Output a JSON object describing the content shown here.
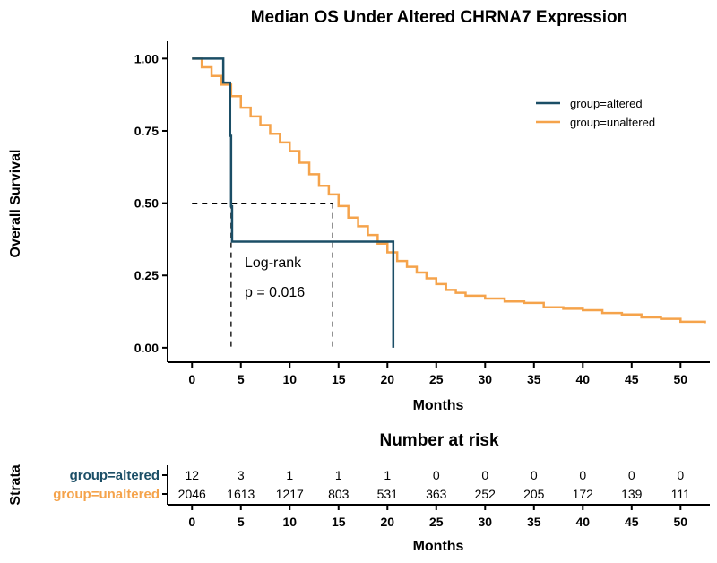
{
  "chart_data": [
    {
      "type": "line",
      "subtype": "kaplan-meier",
      "title": "Median OS Under Altered CHRNA7 Expression",
      "xlabel": "Months",
      "ylabel": "Overall Survival",
      "xlim": [
        -2.5,
        53
      ],
      "ylim": [
        -0.05,
        1.06
      ],
      "x_ticks": [
        0,
        5,
        10,
        15,
        20,
        25,
        30,
        35,
        40,
        45,
        50
      ],
      "y_ticks": [
        0.0,
        0.25,
        0.5,
        0.75,
        1.0
      ],
      "y_tick_labels": [
        "0.00",
        "0.25",
        "0.50",
        "0.75",
        "1.00"
      ],
      "legend": {
        "position": "top-right"
      },
      "series": [
        {
          "name": "group=altered",
          "color": "#1b4e66",
          "step": true,
          "x": [
            0,
            3.2,
            3.2,
            3.9,
            3.9,
            4.0,
            4.0,
            4.1,
            4.1,
            20.6,
            20.6
          ],
          "y": [
            1.0,
            1.0,
            0.917,
            0.917,
            0.733,
            0.733,
            0.489,
            0.489,
            0.367,
            0.367,
            0.0
          ]
        },
        {
          "name": "group=unaltered",
          "color": "#f5a34b",
          "step": true,
          "x": [
            0,
            1,
            2,
            3,
            4,
            5,
            6,
            7,
            8,
            9,
            10,
            11,
            12,
            13,
            14,
            15,
            16,
            17,
            18,
            19,
            20,
            21,
            22,
            23,
            24,
            25,
            26,
            27,
            28,
            30,
            32,
            34,
            36,
            38,
            40,
            42,
            44,
            46,
            48,
            50,
            52.5
          ],
          "y": [
            1.0,
            0.97,
            0.94,
            0.91,
            0.87,
            0.83,
            0.8,
            0.77,
            0.74,
            0.71,
            0.68,
            0.64,
            0.6,
            0.56,
            0.53,
            0.49,
            0.45,
            0.42,
            0.39,
            0.36,
            0.33,
            0.3,
            0.28,
            0.26,
            0.24,
            0.22,
            0.2,
            0.19,
            0.18,
            0.17,
            0.16,
            0.155,
            0.14,
            0.135,
            0.13,
            0.12,
            0.115,
            0.105,
            0.1,
            0.09,
            0.085
          ]
        }
      ],
      "reference_lines": {
        "median_y": 0.5,
        "median_x": [
          4.0,
          14.4
        ]
      },
      "annotation": [
        "Log-rank",
        "p = 0.016"
      ]
    },
    {
      "type": "table",
      "title": "Number at risk",
      "xlabel": "Months",
      "ylabel": "Strata",
      "x_ticks": [
        0,
        5,
        10,
        15,
        20,
        25,
        30,
        35,
        40,
        45,
        50
      ],
      "rows": [
        {
          "name": "group=altered",
          "color": "#1b4e66",
          "values": [
            12,
            3,
            1,
            1,
            1,
            0,
            0,
            0,
            0,
            0,
            0
          ]
        },
        {
          "name": "group=unaltered",
          "color": "#f5a34b",
          "values": [
            2046,
            1613,
            1217,
            803,
            531,
            363,
            252,
            205,
            172,
            139,
            111
          ]
        }
      ]
    }
  ]
}
